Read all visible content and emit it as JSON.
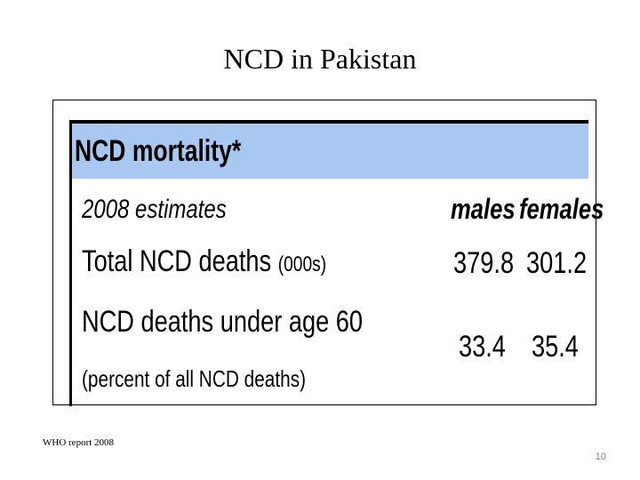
{
  "slide": {
    "title": "NCD in Pakistan",
    "source": "WHO report 2008",
    "page_number": "10"
  },
  "table": {
    "header": "NCD mortality*",
    "header_color": "#a8c8f2",
    "estimates_label": "2008 estimates",
    "columns": [
      "males",
      "females"
    ],
    "rows": [
      {
        "label": "Total NCD deaths",
        "unit": "(000s)",
        "males": "379.8",
        "females": "301.2"
      },
      {
        "label": "NCD deaths under age 60",
        "sublabel": "(percent of all NCD deaths)",
        "males": "33.4",
        "females": "35.4"
      }
    ]
  }
}
